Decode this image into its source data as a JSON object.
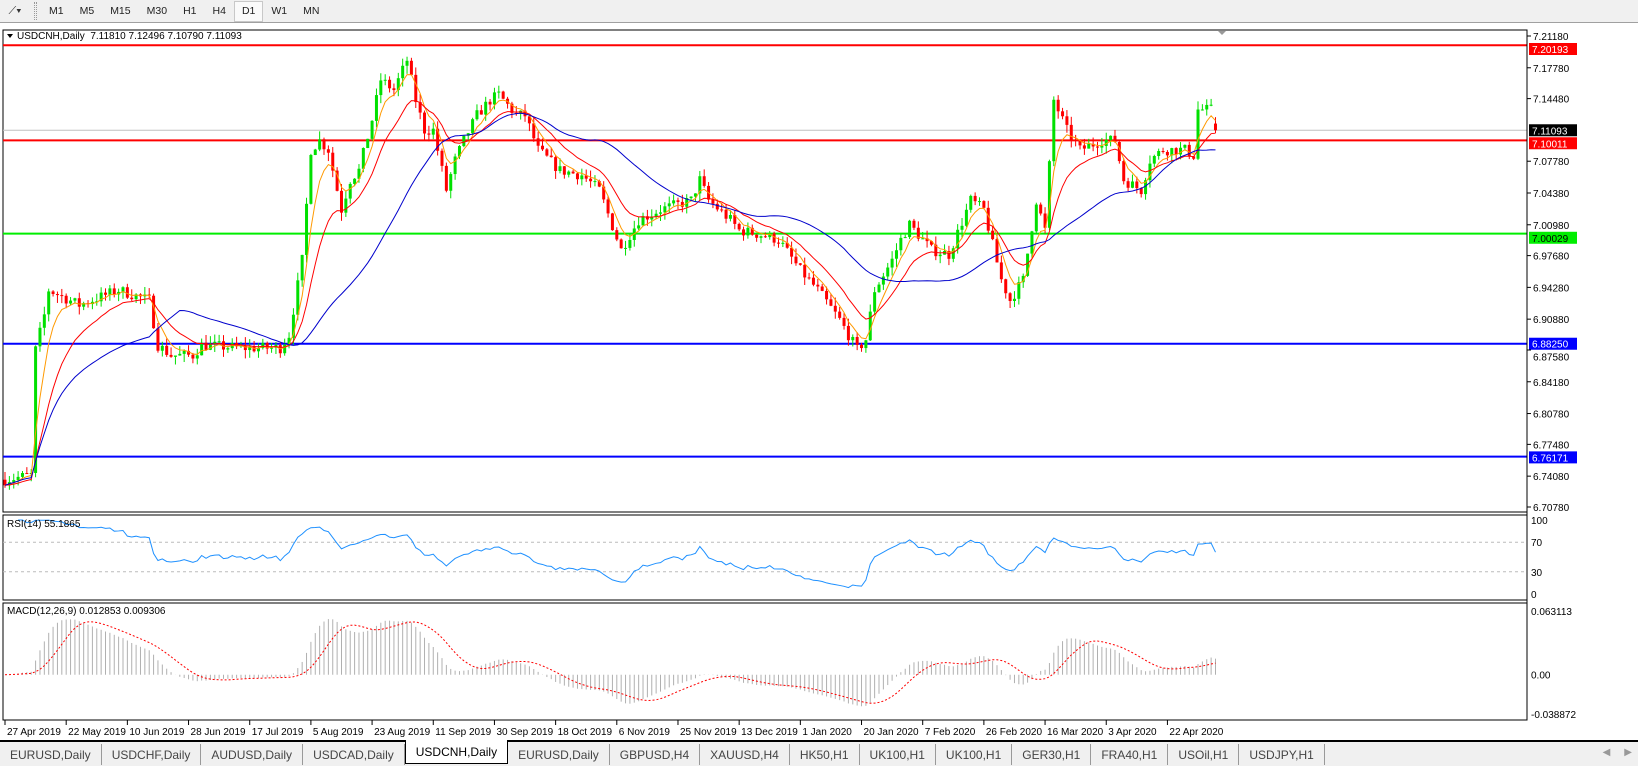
{
  "toolbar": {
    "tool_icon": "line-studies-icon",
    "timeframes": [
      "M1",
      "M5",
      "M15",
      "M30",
      "H1",
      "H4",
      "D1",
      "W1",
      "MN"
    ],
    "active_timeframe": "D1"
  },
  "chart_data": {
    "type": "candlestick",
    "title": "USDCNH,Daily  7.11810 7.12496 7.10790 7.11093",
    "symbol": "USDCNH",
    "timeframe": "Daily",
    "ohlc_last": {
      "open": 7.1181,
      "high": 7.12496,
      "low": 7.1079,
      "close": 7.11093
    },
    "colors": {
      "bull": "#00e000",
      "bear": "#ff0000",
      "ma_fast": "#ff9900",
      "ma_mid": "#ff0000",
      "ma_slow": "#0000cc",
      "rsi": "#1e90ff",
      "macd_hist": "#b0b0b0",
      "macd_signal": "#ff0000"
    },
    "ylim": [
      6.7078,
      7.2118
    ],
    "price_ticks": [
      "7.21180",
      "7.17780",
      "7.14480",
      "7.07780",
      "7.04380",
      "7.00980",
      "6.97680",
      "6.94280",
      "6.90880",
      "6.87580",
      "6.84180",
      "6.80780",
      "6.77480",
      "6.74080",
      "6.70780"
    ],
    "current_price": "7.11093",
    "levels": [
      {
        "value": "7.20193",
        "color": "#ff0000"
      },
      {
        "value": "7.10011",
        "color": "#ff0000"
      },
      {
        "value": "7.00029",
        "color": "#00ee00"
      },
      {
        "value": "6.88250",
        "color": "#0000ff"
      },
      {
        "value": "6.76171",
        "color": "#0000ff"
      }
    ],
    "close_waypoints": [
      [
        0,
        6.737
      ],
      [
        6,
        6.742
      ],
      [
        7,
        6.876
      ],
      [
        9,
        6.913
      ],
      [
        10,
        6.94
      ],
      [
        17,
        6.924
      ],
      [
        26,
        6.94
      ],
      [
        33,
        6.929
      ],
      [
        35,
        6.881
      ],
      [
        38,
        6.87
      ],
      [
        43,
        6.87
      ],
      [
        45,
        6.881
      ],
      [
        54,
        6.878
      ],
      [
        63,
        6.878
      ],
      [
        65,
        6.892
      ],
      [
        68,
        6.972
      ],
      [
        70,
        7.09
      ],
      [
        72,
        7.1
      ],
      [
        74,
        7.09
      ],
      [
        77,
        7.026
      ],
      [
        79,
        7.058
      ],
      [
        81,
        7.068
      ],
      [
        84,
        7.122
      ],
      [
        86,
        7.165
      ],
      [
        89,
        7.154
      ],
      [
        92,
        7.186
      ],
      [
        94,
        7.143
      ],
      [
        96,
        7.111
      ],
      [
        98,
        7.111
      ],
      [
        101,
        7.047
      ],
      [
        103,
        7.079
      ],
      [
        105,
        7.1
      ],
      [
        108,
        7.127
      ],
      [
        111,
        7.143
      ],
      [
        113,
        7.149
      ],
      [
        117,
        7.127
      ],
      [
        119,
        7.127
      ],
      [
        122,
        7.09
      ],
      [
        127,
        7.068
      ],
      [
        132,
        7.063
      ],
      [
        136,
        7.047
      ],
      [
        141,
        6.983
      ],
      [
        145,
        7.015
      ],
      [
        150,
        7.026
      ],
      [
        157,
        7.036
      ],
      [
        159,
        7.058
      ],
      [
        161,
        7.036
      ],
      [
        166,
        7.015
      ],
      [
        168,
        7.004
      ],
      [
        173,
        6.999
      ],
      [
        177,
        6.994
      ],
      [
        182,
        6.961
      ],
      [
        186,
        6.94
      ],
      [
        191,
        6.908
      ],
      [
        195,
        6.876
      ],
      [
        197,
        6.887
      ],
      [
        199,
        6.94
      ],
      [
        203,
        6.972
      ],
      [
        205,
        6.994
      ],
      [
        207,
        7.01
      ],
      [
        212,
        6.983
      ],
      [
        216,
        6.978
      ],
      [
        221,
        7.036
      ],
      [
        224,
        7.026
      ],
      [
        228,
        6.951
      ],
      [
        230,
        6.929
      ],
      [
        233,
        6.951
      ],
      [
        236,
        7.036
      ],
      [
        238,
        7.004
      ],
      [
        240,
        7.143
      ],
      [
        243,
        7.111
      ],
      [
        246,
        7.09
      ],
      [
        251,
        7.1
      ],
      [
        254,
        7.1
      ],
      [
        256,
        7.058
      ],
      [
        260,
        7.047
      ],
      [
        262,
        7.079
      ],
      [
        265,
        7.09
      ],
      [
        270,
        7.09
      ],
      [
        272,
        7.084
      ],
      [
        273,
        7.133
      ],
      [
        276,
        7.133
      ],
      [
        277,
        7.11093
      ]
    ],
    "date_labels": [
      "27 Apr 2019",
      "22 May 2019",
      "10 Jun 2019",
      "28 Jun 2019",
      "17 Jul 2019",
      "5 Aug 2019",
      "23 Aug 2019",
      "11 Sep 2019",
      "30 Sep 2019",
      "18 Oct 2019",
      "6 Nov 2019",
      "25 Nov 2019",
      "13 Dec 2019",
      "1 Jan 2020",
      "20 Jan 2020",
      "7 Feb 2020",
      "26 Feb 2020",
      "16 Mar 2020",
      "3 Apr 2020",
      "22 Apr 2020"
    ],
    "rsi": {
      "label": "RSI(14) 55.1865",
      "ticks": [
        "100",
        "70",
        "30",
        "0"
      ],
      "levels": [
        70,
        30
      ]
    },
    "macd": {
      "label": "MACD(12,26,9) 0.012853 0.009306",
      "ticks": [
        "0.063113",
        "0.00",
        "-0.038872"
      ],
      "ylim": [
        -0.038872,
        0.063113
      ]
    }
  },
  "tabs": [
    {
      "label": "EURUSD,Daily"
    },
    {
      "label": "USDCHF,Daily"
    },
    {
      "label": "AUDUSD,Daily"
    },
    {
      "label": "USDCAD,Daily"
    },
    {
      "label": "USDCNH,Daily",
      "active": true
    },
    {
      "label": "EURUSD,Daily"
    },
    {
      "label": "GBPUSD,H4"
    },
    {
      "label": "XAUUSD,H4"
    },
    {
      "label": "HK50,H1"
    },
    {
      "label": "UK100,H1"
    },
    {
      "label": "UK100,H1"
    },
    {
      "label": "GER30,H1"
    },
    {
      "label": "FRA40,H1"
    },
    {
      "label": "USOil,H1"
    },
    {
      "label": "USDJPY,H1"
    }
  ]
}
